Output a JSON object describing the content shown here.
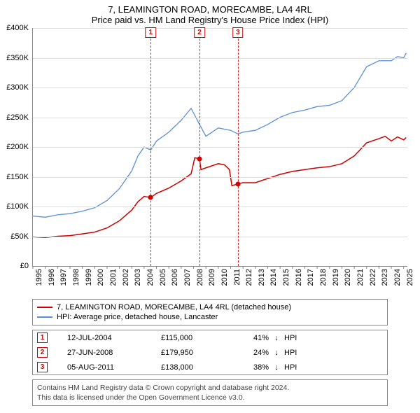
{
  "title": "7, LEAMINGTON ROAD, MORECAMBE, LA4 4RL",
  "subtitle": "Price paid vs. HM Land Registry's House Price Index (HPI)",
  "chart": {
    "type": "line",
    "ylim": [
      0,
      400000
    ],
    "ytick_step": 50000,
    "y_ticks": [
      {
        "v": 0,
        "label": "£0"
      },
      {
        "v": 50000,
        "label": "£50K"
      },
      {
        "v": 100000,
        "label": "£100K"
      },
      {
        "v": 150000,
        "label": "£150K"
      },
      {
        "v": 200000,
        "label": "£200K"
      },
      {
        "v": 250000,
        "label": "£250K"
      },
      {
        "v": 300000,
        "label": "£300K"
      },
      {
        "v": 350000,
        "label": "£350K"
      },
      {
        "v": 400000,
        "label": "£400K"
      }
    ],
    "xlim": [
      1995,
      2025.3
    ],
    "x_ticks": [
      1995,
      1996,
      1997,
      1998,
      1999,
      2000,
      2001,
      2002,
      2003,
      2004,
      2005,
      2006,
      2007,
      2008,
      2009,
      2010,
      2011,
      2012,
      2013,
      2014,
      2015,
      2016,
      2017,
      2018,
      2019,
      2020,
      2021,
      2022,
      2023,
      2024,
      2025
    ],
    "background_color": "#ffffff",
    "grid_color": "#dddddd",
    "axis_color": "#888888",
    "series": [
      {
        "name": "hpi",
        "color": "#5b8fd6",
        "width": 1.3,
        "points": [
          [
            1995.0,
            84000
          ],
          [
            1996.0,
            82000
          ],
          [
            1997.0,
            86000
          ],
          [
            1998.0,
            88000
          ],
          [
            1999.0,
            92000
          ],
          [
            2000.0,
            98000
          ],
          [
            2001.0,
            110000
          ],
          [
            2002.0,
            130000
          ],
          [
            2003.0,
            160000
          ],
          [
            2003.5,
            185000
          ],
          [
            2004.0,
            200000
          ],
          [
            2004.53,
            195000
          ],
          [
            2005.0,
            210000
          ],
          [
            2006.0,
            225000
          ],
          [
            2007.0,
            245000
          ],
          [
            2007.8,
            265000
          ],
          [
            2008.48,
            238000
          ],
          [
            2009.0,
            218000
          ],
          [
            2010.0,
            232000
          ],
          [
            2011.0,
            228000
          ],
          [
            2011.59,
            222000
          ],
          [
            2012.0,
            225000
          ],
          [
            2013.0,
            228000
          ],
          [
            2014.0,
            238000
          ],
          [
            2015.0,
            250000
          ],
          [
            2016.0,
            258000
          ],
          [
            2017.0,
            262000
          ],
          [
            2018.0,
            268000
          ],
          [
            2019.0,
            270000
          ],
          [
            2020.0,
            278000
          ],
          [
            2021.0,
            300000
          ],
          [
            2022.0,
            335000
          ],
          [
            2023.0,
            345000
          ],
          [
            2024.0,
            345000
          ],
          [
            2024.5,
            352000
          ],
          [
            2025.0,
            350000
          ],
          [
            2025.2,
            358000
          ]
        ]
      },
      {
        "name": "property",
        "color": "#cc0000",
        "width": 1.5,
        "points": [
          [
            1995.0,
            49000
          ],
          [
            1996.0,
            48000
          ],
          [
            1997.0,
            50000
          ],
          [
            1998.0,
            51000
          ],
          [
            1999.0,
            54000
          ],
          [
            2000.0,
            57000
          ],
          [
            2001.0,
            64000
          ],
          [
            2002.0,
            76000
          ],
          [
            2003.0,
            94000
          ],
          [
            2003.5,
            108000
          ],
          [
            2004.0,
            117000
          ],
          [
            2004.53,
            115000
          ],
          [
            2005.0,
            122000
          ],
          [
            2006.0,
            131000
          ],
          [
            2007.0,
            143000
          ],
          [
            2007.8,
            155000
          ],
          [
            2008.1,
            182000
          ],
          [
            2008.48,
            179950
          ],
          [
            2008.6,
            162000
          ],
          [
            2009.0,
            165000
          ],
          [
            2010.0,
            172000
          ],
          [
            2010.5,
            170000
          ],
          [
            2010.9,
            162000
          ],
          [
            2011.1,
            135000
          ],
          [
            2011.59,
            138000
          ],
          [
            2012.0,
            140000
          ],
          [
            2013.0,
            140000
          ],
          [
            2014.0,
            147000
          ],
          [
            2015.0,
            154000
          ],
          [
            2016.0,
            159000
          ],
          [
            2017.0,
            162000
          ],
          [
            2018.0,
            165000
          ],
          [
            2019.0,
            167000
          ],
          [
            2020.0,
            172000
          ],
          [
            2021.0,
            185000
          ],
          [
            2022.0,
            207000
          ],
          [
            2023.0,
            214000
          ],
          [
            2023.5,
            218000
          ],
          [
            2024.0,
            210000
          ],
          [
            2024.5,
            217000
          ],
          [
            2025.0,
            212000
          ],
          [
            2025.2,
            216000
          ]
        ]
      }
    ],
    "sale_markers": [
      {
        "n": "1",
        "x": 2004.53,
        "y": 115000
      },
      {
        "n": "2",
        "x": 2008.48,
        "y": 179950
      },
      {
        "n": "3",
        "x": 2011.59,
        "y": 138000
      }
    ]
  },
  "legend": {
    "rows": [
      {
        "color": "#cc0000",
        "label": "7, LEAMINGTON ROAD, MORECAMBE, LA4 4RL (detached house)"
      },
      {
        "color": "#5b8fd6",
        "label": "HPI: Average price, detached house, Lancaster"
      }
    ]
  },
  "sales": [
    {
      "n": "1",
      "date": "12-JUL-2004",
      "price": "£115,000",
      "pct": "41%",
      "arrow": "↓",
      "hpi": "HPI"
    },
    {
      "n": "2",
      "date": "27-JUN-2008",
      "price": "£179,950",
      "pct": "24%",
      "arrow": "↓",
      "hpi": "HPI"
    },
    {
      "n": "3",
      "date": "05-AUG-2011",
      "price": "£138,000",
      "pct": "38%",
      "arrow": "↓",
      "hpi": "HPI"
    }
  ],
  "footer": {
    "line1": "Contains HM Land Registry data © Crown copyright and database right 2024.",
    "line2": "This data is licensed under the Open Government Licence v3.0."
  }
}
